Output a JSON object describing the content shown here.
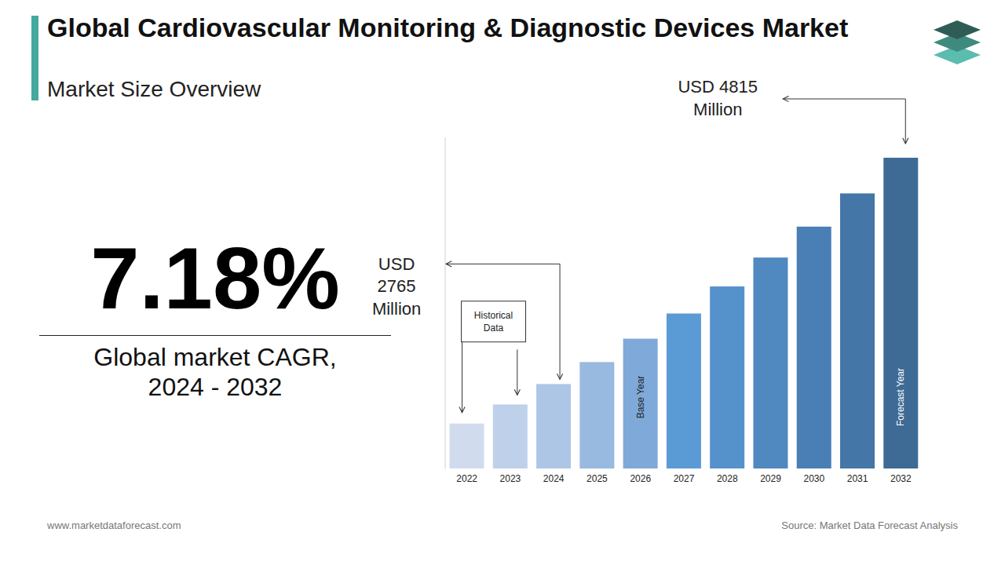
{
  "chart_data": {
    "type": "bar",
    "title": "Global Cardiovascular Monitoring & Diagnostic Devices Market",
    "subtitle": "Market Size Overview",
    "categories": [
      "2022",
      "2023",
      "2024",
      "2025",
      "2026",
      "2027",
      "2028",
      "2029",
      "2030",
      "2031",
      "2032"
    ],
    "values": [
      2407,
      2580,
      2765,
      2964,
      3176,
      3404,
      3649,
      3911,
      4191,
      4492,
      4815
    ],
    "colors": [
      "#d0dcee",
      "#bfd0ea",
      "#adc6e6",
      "#98b9e0",
      "#7ea9d9",
      "#5b9bd5",
      "#5592cc",
      "#5088c0",
      "#4a7fb5",
      "#4476a8",
      "#3e6a96"
    ],
    "ylim": [
      2000,
      5000
    ],
    "yticks": [],
    "tick_labels": "x",
    "grid": false,
    "data_labels": false,
    "annotations": [
      {
        "text": "USD\n2765\nMillion",
        "category": "2024"
      },
      {
        "text": "USD 4815\nMillion",
        "category": "2032"
      },
      {
        "text": "Historical\nData",
        "categories": [
          "2022",
          "2023"
        ]
      },
      {
        "text": "Base Year",
        "category": "2026"
      },
      {
        "text": "Forecast Year",
        "category": "2032"
      }
    ],
    "headline": "7.18%",
    "headline_caption": "Global market CAGR,\n2024 - 2032",
    "website": "www.marketdataforecast.com",
    "source": "Source: Market Data Forecast Analysis"
  }
}
